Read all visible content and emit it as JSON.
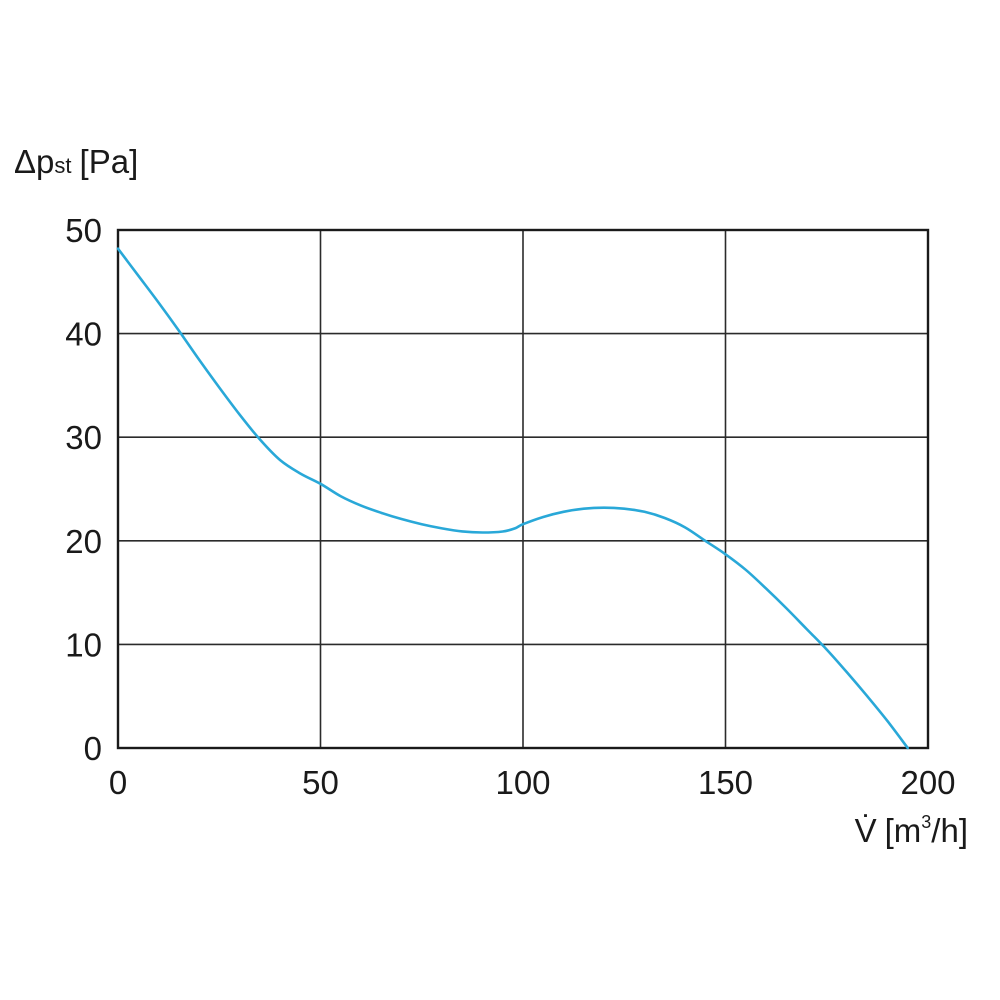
{
  "chart_data": {
    "type": "line",
    "title": "",
    "ylabel": {
      "symbol": "Δp",
      "subscript": "st",
      "unit": "[Pa]"
    },
    "xlabel": {
      "symbol": "V̇",
      "unit_prefix": "[m",
      "unit_sup": "3",
      "unit_suffix": "/h]"
    },
    "xlim": [
      0,
      200
    ],
    "ylim": [
      0,
      50
    ],
    "x_ticks": [
      {
        "value": 0,
        "label": "0"
      },
      {
        "value": 50,
        "label": "50"
      },
      {
        "value": 100,
        "label": "100"
      },
      {
        "value": 150,
        "label": "150"
      },
      {
        "value": 200,
        "label": "200"
      }
    ],
    "y_ticks": [
      {
        "value": 0,
        "label": "0"
      },
      {
        "value": 10,
        "label": "10"
      },
      {
        "value": 20,
        "label": "20"
      },
      {
        "value": 30,
        "label": "30"
      },
      {
        "value": 40,
        "label": "40"
      },
      {
        "value": 50,
        "label": "50"
      }
    ],
    "grid": true,
    "line_color": "#29a8d8",
    "series": [
      {
        "x": [
          0,
          5,
          10,
          15,
          20,
          25,
          30,
          35,
          40,
          45,
          50,
          55,
          60,
          65,
          70,
          75,
          80,
          85,
          90,
          95,
          98,
          100,
          105,
          110,
          115,
          120,
          125,
          130,
          135,
          140,
          145,
          150,
          155,
          160,
          165,
          170,
          175,
          180,
          185,
          190,
          195
        ],
        "y": [
          48.2,
          45.6,
          43.0,
          40.3,
          37.5,
          34.8,
          32.2,
          29.8,
          27.8,
          26.5,
          25.5,
          24.3,
          23.4,
          22.7,
          22.1,
          21.6,
          21.2,
          20.9,
          20.8,
          20.9,
          21.2,
          21.6,
          22.3,
          22.8,
          23.1,
          23.2,
          23.1,
          22.8,
          22.2,
          21.3,
          20.0,
          18.7,
          17.2,
          15.4,
          13.5,
          11.5,
          9.5,
          7.3,
          5.0,
          2.6,
          0.0
        ]
      }
    ]
  }
}
